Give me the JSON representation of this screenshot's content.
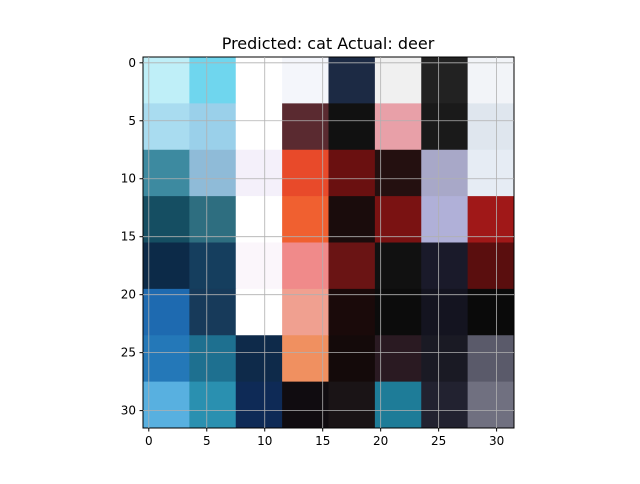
{
  "chart_data": {
    "type": "image",
    "title": "Predicted: cat Actual: deer",
    "xlim": [
      -0.5,
      31.5
    ],
    "ylim": [
      31.5,
      -0.5
    ],
    "xticks": [
      0,
      5,
      10,
      15,
      20,
      25,
      30
    ],
    "yticks": [
      0,
      5,
      10,
      15,
      20,
      25,
      30
    ],
    "grid": true
  }
}
